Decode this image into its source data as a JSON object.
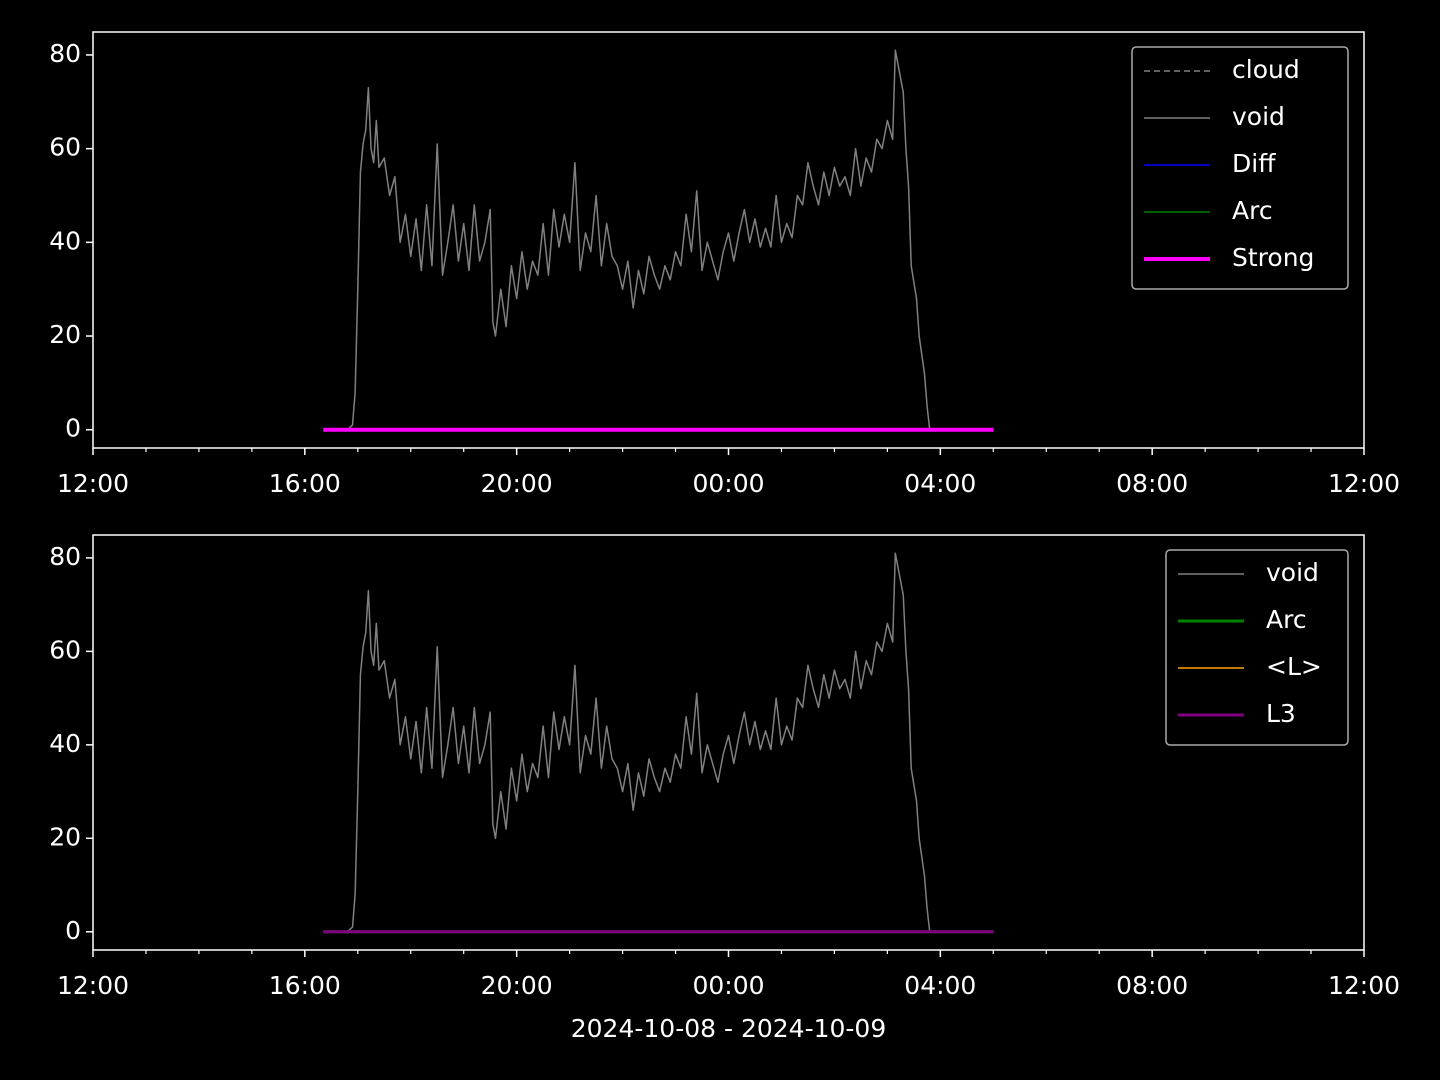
{
  "chart_data": [
    {
      "type": "line",
      "legend": "upper right",
      "xlim": [
        12,
        36
      ],
      "ylim": [
        -3.9,
        84.9
      ],
      "xticks": [
        {
          "value": 12,
          "label": "12:00"
        },
        {
          "value": 16,
          "label": "16:00"
        },
        {
          "value": 20,
          "label": "20:00"
        },
        {
          "value": 24,
          "label": "00:00"
        },
        {
          "value": 28,
          "label": "04:00"
        },
        {
          "value": 32,
          "label": "08:00"
        },
        {
          "value": 36,
          "label": "12:00"
        }
      ],
      "xminorticks": [
        13,
        14,
        15,
        17,
        18,
        19,
        21,
        22,
        23,
        25,
        26,
        27,
        29,
        30,
        31,
        33,
        34,
        35
      ],
      "yticks": [
        0,
        20,
        40,
        60,
        80
      ],
      "series": [
        {
          "name": "cloud",
          "color": "#808080",
          "width": 1.5,
          "dash": "dashed",
          "x": [
            16.35,
            29.0
          ],
          "values": [
            0,
            0
          ]
        },
        {
          "name": "void",
          "color": "#808080",
          "width": 1.5,
          "dash": "solid",
          "x": [
            16.8,
            16.9,
            16.95,
            17.0,
            17.05,
            17.1,
            17.15,
            17.2,
            17.25,
            17.3,
            17.35,
            17.4,
            17.5,
            17.6,
            17.7,
            17.8,
            17.9,
            18.0,
            18.1,
            18.2,
            18.3,
            18.4,
            18.5,
            18.6,
            18.7,
            18.8,
            18.9,
            19.0,
            19.1,
            19.2,
            19.3,
            19.4,
            19.5,
            19.55,
            19.6,
            19.7,
            19.8,
            19.9,
            20.0,
            20.1,
            20.2,
            20.3,
            20.4,
            20.5,
            20.6,
            20.7,
            20.8,
            20.9,
            21.0,
            21.1,
            21.2,
            21.3,
            21.4,
            21.5,
            21.6,
            21.7,
            21.8,
            21.9,
            22.0,
            22.1,
            22.2,
            22.3,
            22.4,
            22.5,
            22.6,
            22.7,
            22.8,
            22.9,
            23.0,
            23.1,
            23.2,
            23.3,
            23.4,
            23.5,
            23.6,
            23.7,
            23.8,
            23.9,
            24.0,
            24.1,
            24.2,
            24.3,
            24.4,
            24.5,
            24.6,
            24.7,
            24.8,
            24.9,
            25.0,
            25.1,
            25.2,
            25.3,
            25.4,
            25.5,
            25.6,
            25.7,
            25.8,
            25.9,
            26.0,
            26.1,
            26.2,
            26.3,
            26.4,
            26.5,
            26.6,
            26.7,
            26.8,
            26.9,
            27.0,
            27.1,
            27.15,
            27.2,
            27.3,
            27.35,
            27.4,
            27.45,
            27.55,
            27.6,
            27.7,
            27.75,
            27.8
          ],
          "values": [
            0,
            1,
            8,
            30,
            55,
            61,
            64,
            73,
            60,
            57,
            66,
            56,
            58,
            50,
            54,
            40,
            46,
            37,
            45,
            34,
            48,
            35,
            61,
            33,
            40,
            48,
            36,
            44,
            34,
            48,
            36,
            40,
            47,
            23,
            20,
            30,
            22,
            35,
            28,
            38,
            30,
            36,
            33,
            44,
            33,
            47,
            39,
            46,
            40,
            57,
            34,
            42,
            38,
            50,
            35,
            44,
            37,
            35,
            30,
            36,
            26,
            34,
            29,
            37,
            33,
            30,
            35,
            32,
            38,
            35,
            46,
            38,
            51,
            34,
            40,
            36,
            32,
            38,
            42,
            36,
            42,
            47,
            40,
            45,
            39,
            43,
            39,
            50,
            40,
            44,
            41,
            50,
            48,
            57,
            52,
            48,
            55,
            50,
            56,
            52,
            54,
            50,
            60,
            52,
            58,
            55,
            62,
            60,
            66,
            62,
            81,
            78,
            72,
            60,
            52,
            35,
            28,
            20,
            12,
            5,
            0
          ]
        },
        {
          "name": "Diff",
          "color": "#0000ff",
          "width": 1.5,
          "dash": "solid",
          "x": [
            16.35,
            29.0
          ],
          "values": [
            0,
            0
          ]
        },
        {
          "name": "Arc",
          "color": "#008000",
          "width": 1.5,
          "dash": "solid",
          "x": [
            16.35,
            29.0
          ],
          "values": [
            0,
            0
          ]
        },
        {
          "name": "Strong",
          "color": "#ff00ff",
          "width": 4,
          "dash": "solid",
          "x": [
            16.35,
            29.0
          ],
          "values": [
            0,
            0
          ]
        }
      ]
    },
    {
      "type": "line",
      "legend": "upper right",
      "xlim": [
        12,
        36
      ],
      "ylim": [
        -3.9,
        84.9
      ],
      "xlabel": "2024-10-08 - 2024-10-09",
      "xticks": [
        {
          "value": 12,
          "label": "12:00"
        },
        {
          "value": 16,
          "label": "16:00"
        },
        {
          "value": 20,
          "label": "20:00"
        },
        {
          "value": 24,
          "label": "00:00"
        },
        {
          "value": 28,
          "label": "04:00"
        },
        {
          "value": 32,
          "label": "08:00"
        },
        {
          "value": 36,
          "label": "12:00"
        }
      ],
      "xminorticks": [
        13,
        14,
        15,
        17,
        18,
        19,
        21,
        22,
        23,
        25,
        26,
        27,
        29,
        30,
        31,
        33,
        34,
        35
      ],
      "yticks": [
        0,
        20,
        40,
        60,
        80
      ],
      "series": [
        {
          "name": "void",
          "color": "#808080",
          "width": 1.5,
          "dash": "solid",
          "x": [
            16.8,
            16.9,
            16.95,
            17.0,
            17.05,
            17.1,
            17.15,
            17.2,
            17.25,
            17.3,
            17.35,
            17.4,
            17.5,
            17.6,
            17.7,
            17.8,
            17.9,
            18.0,
            18.1,
            18.2,
            18.3,
            18.4,
            18.5,
            18.6,
            18.7,
            18.8,
            18.9,
            19.0,
            19.1,
            19.2,
            19.3,
            19.4,
            19.5,
            19.55,
            19.6,
            19.7,
            19.8,
            19.9,
            20.0,
            20.1,
            20.2,
            20.3,
            20.4,
            20.5,
            20.6,
            20.7,
            20.8,
            20.9,
            21.0,
            21.1,
            21.2,
            21.3,
            21.4,
            21.5,
            21.6,
            21.7,
            21.8,
            21.9,
            22.0,
            22.1,
            22.2,
            22.3,
            22.4,
            22.5,
            22.6,
            22.7,
            22.8,
            22.9,
            23.0,
            23.1,
            23.2,
            23.3,
            23.4,
            23.5,
            23.6,
            23.7,
            23.8,
            23.9,
            24.0,
            24.1,
            24.2,
            24.3,
            24.4,
            24.5,
            24.6,
            24.7,
            24.8,
            24.9,
            25.0,
            25.1,
            25.2,
            25.3,
            25.4,
            25.5,
            25.6,
            25.7,
            25.8,
            25.9,
            26.0,
            26.1,
            26.2,
            26.3,
            26.4,
            26.5,
            26.6,
            26.7,
            26.8,
            26.9,
            27.0,
            27.1,
            27.15,
            27.2,
            27.3,
            27.35,
            27.4,
            27.45,
            27.55,
            27.6,
            27.7,
            27.75,
            27.8
          ],
          "values": [
            0,
            1,
            8,
            30,
            55,
            61,
            64,
            73,
            60,
            57,
            66,
            56,
            58,
            50,
            54,
            40,
            46,
            37,
            45,
            34,
            48,
            35,
            61,
            33,
            40,
            48,
            36,
            44,
            34,
            48,
            36,
            40,
            47,
            23,
            20,
            30,
            22,
            35,
            28,
            38,
            30,
            36,
            33,
            44,
            33,
            47,
            39,
            46,
            40,
            57,
            34,
            42,
            38,
            50,
            35,
            44,
            37,
            35,
            30,
            36,
            26,
            34,
            29,
            37,
            33,
            30,
            35,
            32,
            38,
            35,
            46,
            38,
            51,
            34,
            40,
            36,
            32,
            38,
            42,
            36,
            42,
            47,
            40,
            45,
            39,
            43,
            39,
            50,
            40,
            44,
            41,
            50,
            48,
            57,
            52,
            48,
            55,
            50,
            56,
            52,
            54,
            50,
            60,
            52,
            58,
            55,
            62,
            60,
            66,
            62,
            81,
            78,
            72,
            60,
            52,
            35,
            28,
            20,
            12,
            5,
            0
          ]
        },
        {
          "name": "Arc",
          "color": "#008000",
          "width": 3,
          "dash": "solid",
          "x": [
            16.35,
            29.0
          ],
          "values": [
            0,
            0
          ]
        },
        {
          "name": "<L>",
          "color": "#ffa500",
          "width": 1.5,
          "dash": "solid",
          "x": [
            16.35,
            29.0
          ],
          "values": [
            0,
            0
          ]
        },
        {
          "name": "L3",
          "color": "#800080",
          "width": 3,
          "dash": "solid",
          "x": [
            16.35,
            29.0
          ],
          "values": [
            0,
            0
          ]
        }
      ]
    }
  ]
}
